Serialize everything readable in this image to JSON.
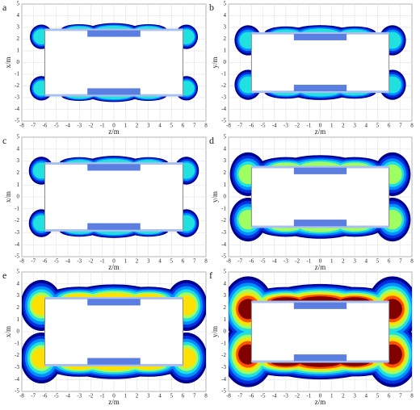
{
  "chart_data": [
    {
      "type": "contour",
      "label": "a",
      "xlabel": "z/m",
      "ylabel": "x/m",
      "xlim": [
        -8,
        8
      ],
      "ylim": [
        -5,
        5
      ],
      "xticks": [
        -8,
        -7,
        -6,
        -5,
        -4,
        -3,
        -2,
        -1,
        0,
        1,
        2,
        3,
        4,
        5,
        6,
        7,
        8
      ],
      "yticks": [
        -5,
        -4,
        -3,
        -2,
        -1,
        0,
        1,
        2,
        3,
        4,
        5
      ],
      "grid": true
    },
    {
      "type": "contour",
      "label": "b",
      "xlabel": "z/m",
      "ylabel": "y/m",
      "xlim": [
        -8,
        8
      ],
      "ylim": [
        -5,
        5
      ],
      "xticks": [
        -8,
        -7,
        -6,
        -5,
        -4,
        -3,
        -2,
        -1,
        0,
        1,
        2,
        3,
        4,
        5,
        6,
        7,
        8
      ],
      "yticks": [
        -5,
        -4,
        -3,
        -2,
        -1,
        0,
        1,
        2,
        3,
        4,
        5
      ],
      "grid": true
    },
    {
      "type": "contour",
      "label": "c",
      "xlabel": "z/m",
      "ylabel": "x/m",
      "xlim": [
        -8,
        8
      ],
      "ylim": [
        -5,
        5
      ],
      "xticks": [
        -8,
        -7,
        -6,
        -5,
        -4,
        -3,
        -2,
        -1,
        0,
        1,
        2,
        3,
        4,
        5,
        6,
        7,
        8
      ],
      "yticks": [
        -5,
        -4,
        -3,
        -2,
        -1,
        0,
        1,
        2,
        3,
        4,
        5
      ],
      "grid": true
    },
    {
      "type": "contour",
      "label": "d",
      "xlabel": "z/m",
      "ylabel": "y/m",
      "xlim": [
        -8,
        8
      ],
      "ylim": [
        -5,
        5
      ],
      "xticks": [
        -8,
        -7,
        -6,
        -5,
        -4,
        -3,
        -2,
        -1,
        0,
        1,
        2,
        3,
        4,
        5,
        6,
        7,
        8
      ],
      "yticks": [
        -5,
        -4,
        -3,
        -2,
        -1,
        0,
        1,
        2,
        3,
        4,
        5
      ],
      "grid": true
    },
    {
      "type": "contour",
      "label": "e",
      "xlabel": "z/m",
      "ylabel": "x/m",
      "xlim": [
        -8,
        8
      ],
      "ylim": [
        -5,
        5
      ],
      "xticks": [
        -8,
        -7,
        -6,
        -5,
        -4,
        -3,
        -2,
        -1,
        0,
        1,
        2,
        3,
        4,
        5,
        6,
        7,
        8
      ],
      "yticks": [
        -5,
        -4,
        -3,
        -2,
        -1,
        0,
        1,
        2,
        3,
        4,
        5
      ],
      "grid": true
    },
    {
      "type": "contour",
      "label": "f",
      "xlabel": "z/m",
      "ylabel": "y/m",
      "xlim": [
        -8,
        8
      ],
      "ylim": [
        -5,
        5
      ],
      "xticks": [
        -8,
        -7,
        -6,
        -5,
        -4,
        -3,
        -2,
        -1,
        0,
        1,
        2,
        3,
        4,
        5,
        6,
        7,
        8
      ],
      "yticks": [
        -5,
        -4,
        -3,
        -2,
        -1,
        0,
        1,
        2,
        3,
        4,
        5
      ],
      "grid": true
    }
  ]
}
